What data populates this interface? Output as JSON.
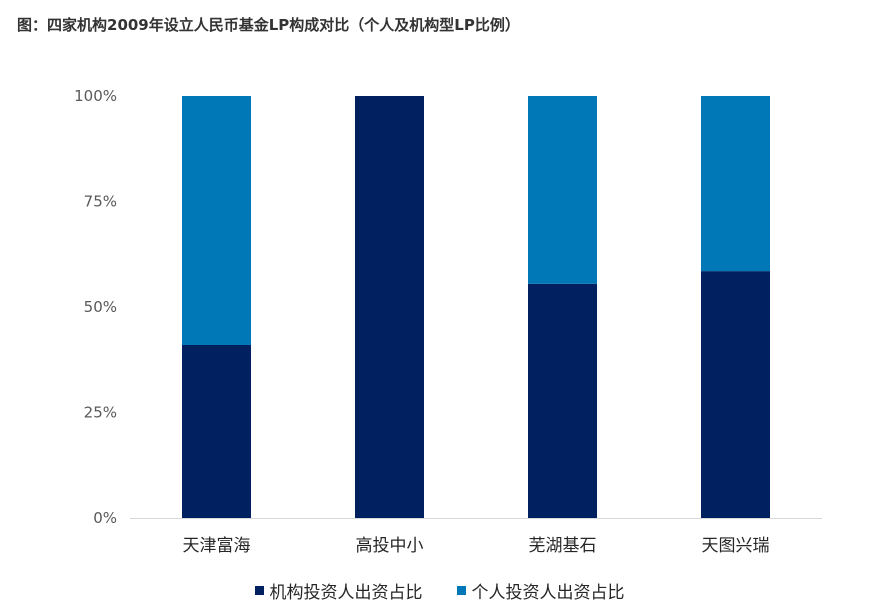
{
  "figure": {
    "title": "图：四家机构2009年设立人民币基金LP构成对比（个人及机构型LP比例）"
  },
  "chart_data": {
    "type": "bar",
    "stacked": true,
    "categories": [
      "天津富海",
      "高投中小",
      "芜湖基石",
      "天图兴瑞"
    ],
    "series": [
      {
        "name": "机构投资人出资占比",
        "color": "#002060",
        "values": [
          41,
          100,
          55.5,
          58.5
        ]
      },
      {
        "name": "个人投资人出资占比",
        "color": "#0077B6",
        "values": [
          59,
          0,
          44.5,
          41.5
        ]
      }
    ],
    "y_ticks": [
      0,
      25,
      50,
      75,
      100
    ],
    "y_tick_labels": [
      "0%",
      "25%",
      "50%",
      "75%",
      "100%"
    ],
    "ylim": [
      0,
      100
    ],
    "grid": false,
    "legend_position": "bottom"
  }
}
